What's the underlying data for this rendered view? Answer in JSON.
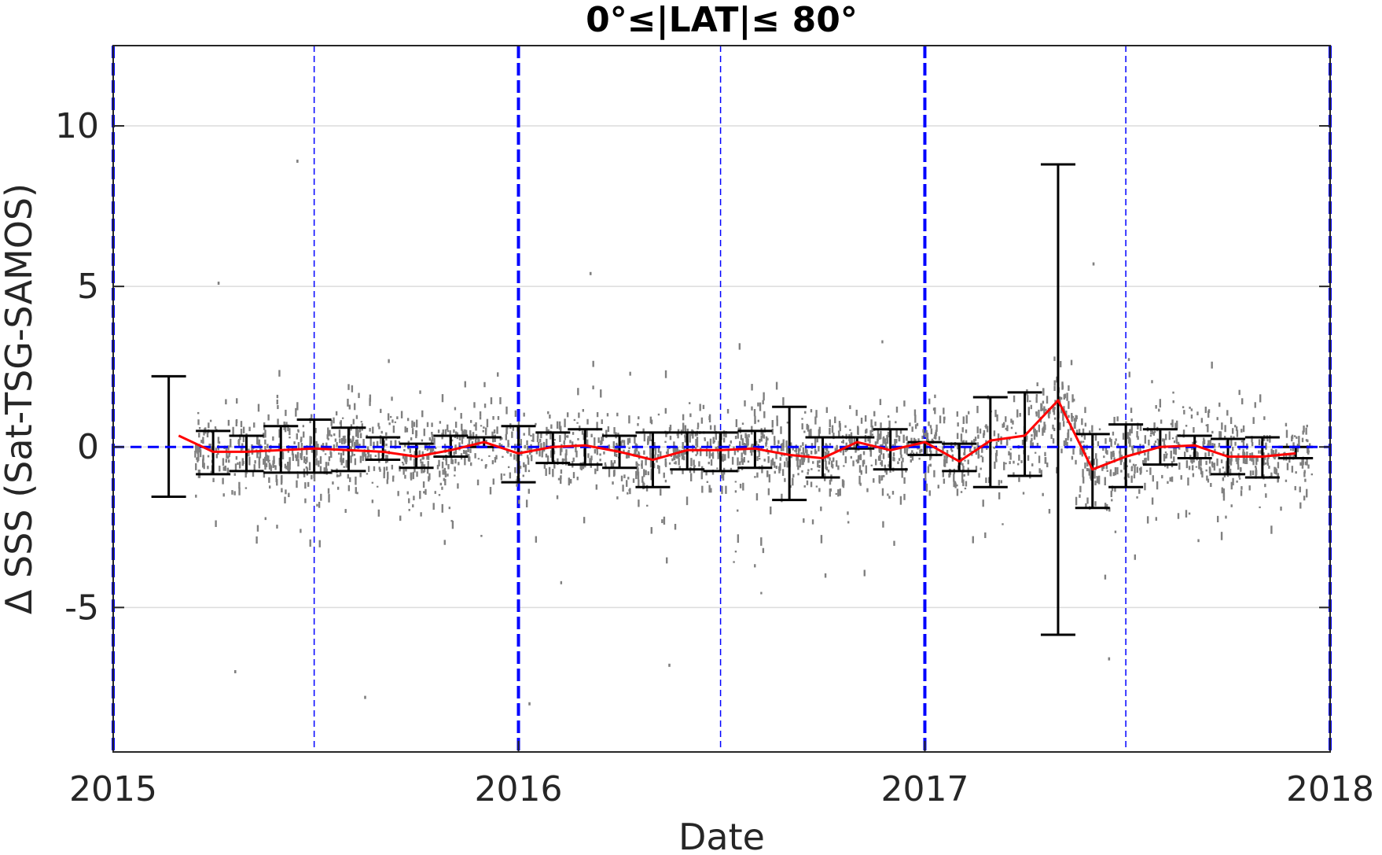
{
  "chart_data": {
    "type": "scatter",
    "title": "0°≤|LAT|≤ 80°",
    "xlabel": "Date",
    "ylabel": "Δ SSS (Sat-TSG-SAMOS)",
    "x_scale": "date",
    "xlim": [
      "2015-01-01",
      "2018-01-01"
    ],
    "ylim": [
      -9.5,
      12.5
    ],
    "xticks": [
      "2015-01-01",
      "2016-01-01",
      "2017-01-01",
      "2018-01-01"
    ],
    "xtick_labels": [
      "2015",
      "2016",
      "2017",
      "2018"
    ],
    "yticks": [
      -5,
      0,
      5,
      10
    ],
    "ytick_labels": [
      "-5",
      "0",
      "5",
      "10"
    ],
    "grid": "horizontal",
    "legend": "none",
    "colors": {
      "scatter": "#808080",
      "mean_line": "#ff0000",
      "error_bars": "#000000",
      "reference": "#0000ff"
    },
    "reference_lines": {
      "zero_line": 0,
      "year_lines": [
        "2015-01-01",
        "2016-01-01",
        "2017-01-01",
        "2018-01-01"
      ],
      "half_year_lines": [
        "2015-07-01",
        "2016-07-01",
        "2017-07-01"
      ]
    },
    "series": [
      {
        "kind": "mean_line",
        "x": [
          "2015-03-01",
          "2015-04-01",
          "2015-05-01",
          "2015-06-01",
          "2015-07-01",
          "2015-08-01",
          "2015-09-01",
          "2015-10-01",
          "2015-11-01",
          "2015-12-01",
          "2016-01-01",
          "2016-02-01",
          "2016-03-01",
          "2016-04-01",
          "2016-05-01",
          "2016-06-01",
          "2016-07-01",
          "2016-08-01",
          "2016-09-01",
          "2016-10-01",
          "2016-11-01",
          "2016-12-01",
          "2017-01-01",
          "2017-02-01",
          "2017-03-01",
          "2017-04-01",
          "2017-05-01",
          "2017-06-01",
          "2017-07-01",
          "2017-08-01",
          "2017-09-01",
          "2017-10-01",
          "2017-11-01",
          "2017-12-01"
        ],
        "y": [
          0.35,
          -0.15,
          -0.15,
          -0.1,
          -0.05,
          -0.1,
          -0.15,
          -0.3,
          -0.1,
          0.15,
          -0.2,
          0.0,
          0.05,
          -0.15,
          -0.4,
          -0.1,
          -0.1,
          -0.05,
          -0.25,
          -0.35,
          0.15,
          -0.1,
          0.15,
          -0.45,
          0.2,
          0.35,
          1.45,
          -0.7,
          -0.3,
          0.0,
          0.05,
          -0.3,
          -0.3,
          -0.2
        ]
      },
      {
        "kind": "error_bars",
        "x": [
          "2015-02-20",
          "2015-04-01",
          "2015-05-01",
          "2015-06-01",
          "2015-07-01",
          "2015-08-01",
          "2015-09-01",
          "2015-10-01",
          "2015-11-01",
          "2015-12-01",
          "2016-01-01",
          "2016-02-01",
          "2016-03-01",
          "2016-04-01",
          "2016-05-01",
          "2016-06-01",
          "2016-07-01",
          "2016-08-01",
          "2016-09-01",
          "2016-10-01",
          "2016-11-01",
          "2016-12-01",
          "2017-01-01",
          "2017-02-01",
          "2017-03-01",
          "2017-04-01",
          "2017-05-01",
          "2017-06-01",
          "2017-07-01",
          "2017-08-01",
          "2017-09-01",
          "2017-10-01",
          "2017-11-01",
          "2017-12-01"
        ],
        "mean": [
          0.3,
          -0.15,
          -0.15,
          -0.1,
          0.05,
          -0.1,
          -0.15,
          -0.3,
          -0.1,
          0.15,
          -0.2,
          0.0,
          0.05,
          -0.15,
          -0.4,
          -0.1,
          -0.1,
          -0.05,
          -0.15,
          -0.3,
          0.15,
          -0.1,
          0.15,
          -0.45,
          0.2,
          0.4,
          1.45,
          -0.7,
          -0.3,
          0.0,
          0.05,
          -0.3,
          -0.3,
          -0.15
        ],
        "low": [
          -1.55,
          -0.85,
          -0.75,
          -0.8,
          -0.8,
          -0.75,
          -0.4,
          -0.65,
          -0.3,
          0.0,
          -1.1,
          -0.5,
          -0.55,
          -0.65,
          -1.25,
          -0.7,
          -0.75,
          -0.65,
          -1.65,
          -0.95,
          -0.05,
          -0.7,
          -0.25,
          -0.75,
          -1.25,
          -0.9,
          -5.85,
          -1.9,
          -1.25,
          -0.55,
          -0.35,
          -0.85,
          -0.95,
          -0.35
        ],
        "high": [
          2.2,
          0.5,
          0.35,
          0.65,
          0.85,
          0.6,
          0.3,
          0.1,
          0.35,
          0.3,
          0.65,
          0.45,
          0.55,
          0.35,
          0.45,
          0.45,
          0.45,
          0.5,
          1.25,
          0.3,
          0.3,
          0.55,
          0.15,
          0.1,
          1.55,
          1.7,
          8.8,
          0.4,
          0.7,
          0.55,
          0.35,
          0.25,
          0.3,
          0.0
        ]
      }
    ],
    "scatter_note_points": [
      {
        "x": "2015-04-05",
        "y": 5.1
      },
      {
        "x": "2015-06-15",
        "y": 8.9
      },
      {
        "x": "2016-03-05",
        "y": 5.4
      },
      {
        "x": "2017-06-01",
        "y": 5.7
      },
      {
        "x": "2015-04-20",
        "y": -7.0
      },
      {
        "x": "2015-08-15",
        "y": -7.8
      },
      {
        "x": "2016-01-10",
        "y": -8.0
      },
      {
        "x": "2016-05-15",
        "y": -6.8
      },
      {
        "x": "2017-06-15",
        "y": -6.6
      }
    ]
  }
}
